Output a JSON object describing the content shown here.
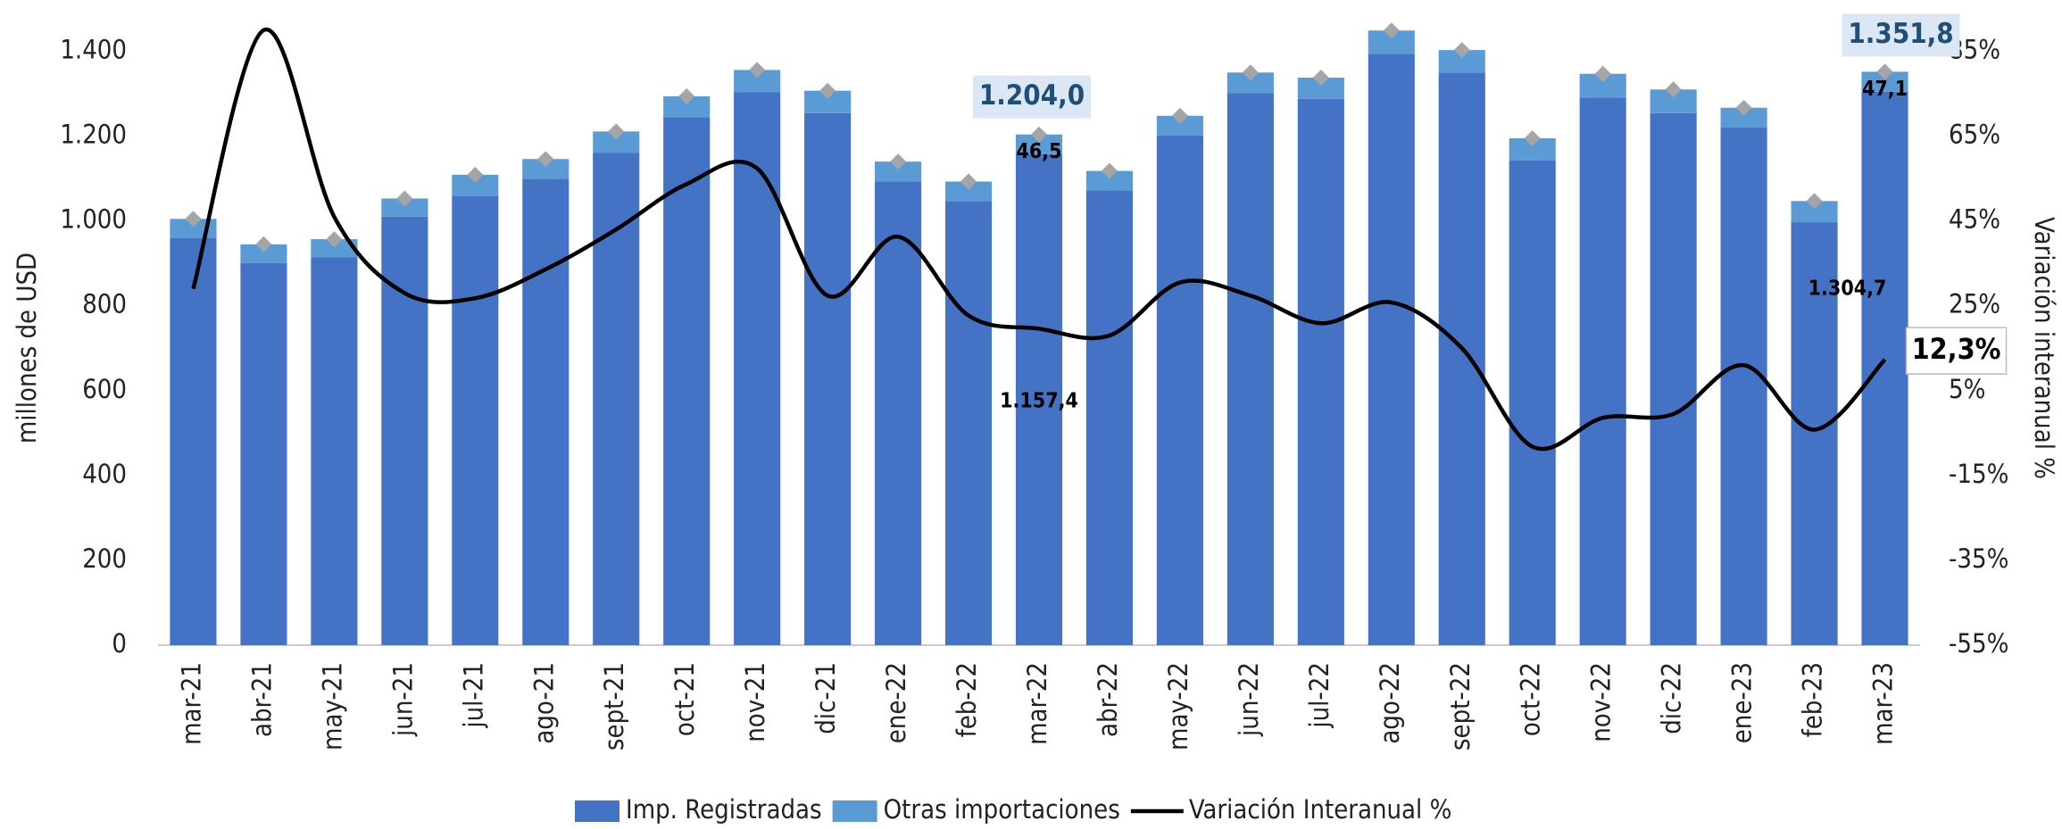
{
  "chart_data": {
    "type": "bar",
    "categories": [
      "mar-21",
      "abr-21",
      "may-21",
      "jun-21",
      "jul-21",
      "ago-21",
      "sept-21",
      "oct-21",
      "nov-21",
      "dic-21",
      "ene-22",
      "feb-22",
      "mar-22",
      "abr-22",
      "may-22",
      "jun-22",
      "jul-22",
      "ago-22",
      "sept-22",
      "oct-22",
      "nov-22",
      "dic-22",
      "ene-23",
      "feb-23",
      "mar-23"
    ],
    "ylabel": "millones de  USD",
    "y2label": "Variación  interanual %",
    "ylim": [
      0,
      1400
    ],
    "yticks": [
      0,
      200,
      400,
      600,
      800,
      {
        "value": 1000,
        "label": "1.000"
      },
      {
        "value": 1200,
        "label": "1.200"
      },
      {
        "value": 1400,
        "label": "1.400"
      }
    ],
    "y2lim": [
      -55,
      85
    ],
    "y2ticks": [
      {
        "value": -55,
        "label": "-55%"
      },
      {
        "value": -35,
        "label": "-35%"
      },
      {
        "value": -15,
        "label": "-15%"
      },
      {
        "value": 5,
        "label": "5%"
      },
      {
        "value": 25,
        "label": "25%"
      },
      {
        "value": 45,
        "label": "45%"
      },
      {
        "value": 65,
        "label": "65%"
      },
      {
        "value": 85,
        "label": "85%"
      }
    ],
    "stacked": true,
    "series": [
      {
        "name": "Imp. Registradas",
        "color": "#4472c4",
        "type": "bar",
        "values": [
          960,
          901,
          914,
          1010,
          1059,
          1099,
          1161,
          1245,
          1304,
          1254,
          1093,
          1047,
          1157.4,
          1072,
          1202,
          1301,
          1288,
          1394,
          1350,
          1143,
          1291,
          1254,
          1220,
          997,
          1304.7
        ],
        "value_labels": [
          null,
          null,
          null,
          null,
          null,
          null,
          null,
          null,
          null,
          null,
          null,
          null,
          "1.157,4",
          null,
          null,
          null,
          null,
          null,
          null,
          null,
          null,
          null,
          null,
          null,
          "1.304,7"
        ]
      },
      {
        "name": "Otras importaciones",
        "color": "#5b9bd5",
        "type": "bar",
        "values": [
          45,
          44,
          43,
          43,
          50,
          47,
          50,
          49,
          52,
          53,
          47,
          46,
          46.5,
          46,
          46,
          49,
          50,
          55,
          53,
          52,
          56,
          56,
          47,
          50,
          47.1
        ],
        "value_labels": [
          null,
          null,
          null,
          null,
          null,
          null,
          null,
          null,
          null,
          null,
          null,
          null,
          "46,5",
          null,
          null,
          null,
          null,
          null,
          null,
          null,
          null,
          null,
          null,
          null,
          "47,1"
        ]
      },
      {
        "name": "Variación Interanual %",
        "color": "#000000",
        "type": "line",
        "axis": "y2",
        "values": [
          29,
          90,
          46,
          28,
          26.8,
          33.6,
          43,
          53.7,
          57.4,
          27.4,
          41.3,
          22.7,
          19.6,
          18,
          30.5,
          27.4,
          20.9,
          25.8,
          15,
          -8.2,
          -1.4,
          -0.5,
          11,
          -4.2,
          12.3
        ],
        "value_labels": [
          null,
          null,
          null,
          null,
          null,
          null,
          null,
          null,
          null,
          null,
          null,
          null,
          null,
          null,
          null,
          null,
          null,
          null,
          null,
          null,
          null,
          null,
          null,
          null,
          "12,3%"
        ]
      }
    ],
    "annotations": [
      {
        "category": "mar-22",
        "text": "1.204,0",
        "value": 1204.0
      },
      {
        "category": "mar-23",
        "text": "1.351,8",
        "value": 1351.8
      }
    ]
  }
}
